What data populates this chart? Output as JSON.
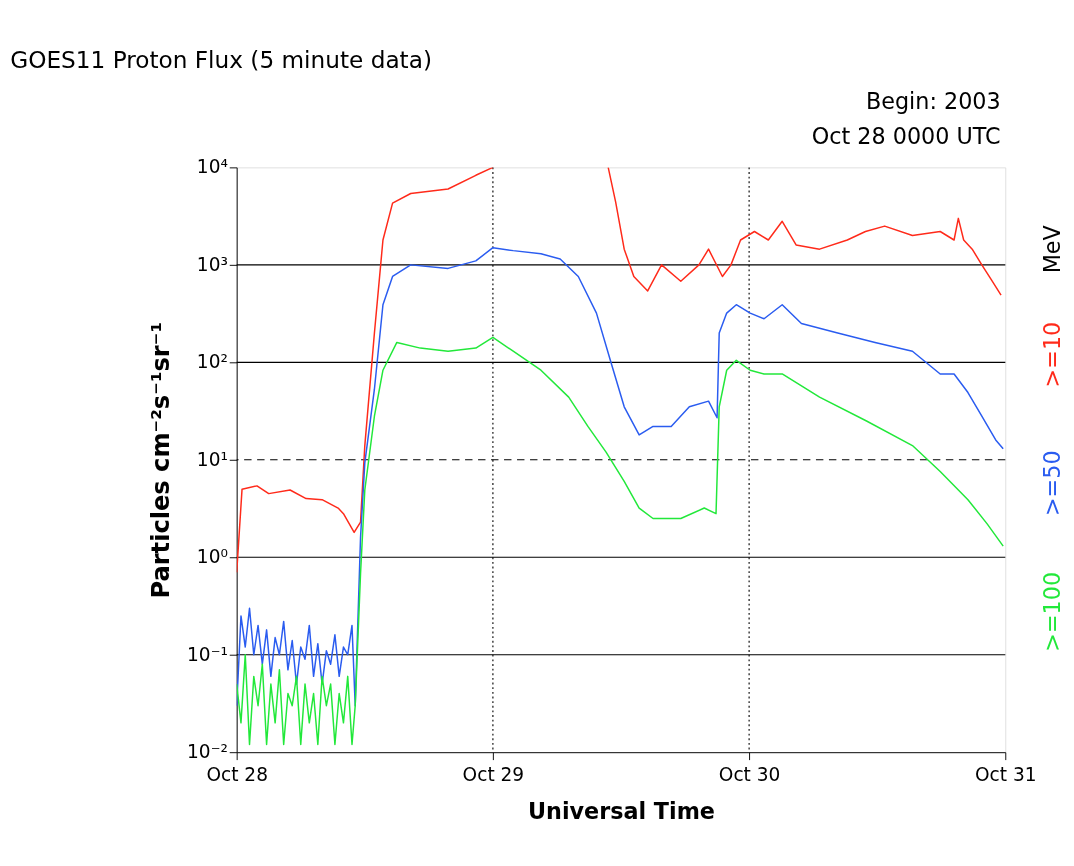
{
  "chart_data": {
    "type": "line",
    "title": "GOES11 Proton Flux (5 minute data)",
    "xlabel": "Universal Time",
    "ylabel": "Particles cm⁻²s⁻¹sr⁻¹",
    "annotations": [
      "Begin: 2003",
      "Oct 28 0000 UTC",
      "MeV"
    ],
    "xlim": [
      "2003-10-28T00:00",
      "2003-10-31T00:00"
    ],
    "xticks": [
      {
        "value": "2003-10-28",
        "label": "Oct 28"
      },
      {
        "value": "2003-10-29",
        "label": "Oct 29"
      },
      {
        "value": "2003-10-30",
        "label": "Oct 30"
      },
      {
        "value": "2003-10-31",
        "label": "Oct 31"
      }
    ],
    "log": true,
    "ylim": [
      0.01,
      10000
    ],
    "yticks": [
      {
        "value": 0.01,
        "label": "10⁻²"
      },
      {
        "value": 0.1,
        "label": "10⁻¹"
      },
      {
        "value": 1,
        "label": "10⁰"
      },
      {
        "value": 10,
        "label": "10¹"
      },
      {
        "value": 100,
        "label": "10²"
      },
      {
        "value": 1000,
        "label": "10³"
      },
      {
        "value": 10000,
        "label": "10⁴"
      }
    ],
    "grid": false,
    "legend": "right",
    "line_style": "solid",
    "marker": "none",
    "ref_lines": [
      {
        "axis": "y",
        "value": 0.1,
        "color": "#000000",
        "line_style": "solid"
      },
      {
        "axis": "y",
        "value": 1,
        "color": "#000000",
        "line_style": "solid"
      },
      {
        "axis": "y",
        "value": 10,
        "color": "#000000",
        "line_style": "dashed"
      },
      {
        "axis": "y",
        "value": 100,
        "color": "#000000",
        "line_style": "solid"
      },
      {
        "axis": "y",
        "value": 1000,
        "color": "#000000",
        "line_style": "solid"
      },
      {
        "axis": "x",
        "value": "2003-10-29",
        "color": "#000000",
        "line_style": "dotted"
      },
      {
        "axis": "x",
        "value": "2003-10-30",
        "color": "#000000",
        "line_style": "dotted"
      }
    ],
    "series": [
      {
        "name": ">=10",
        "color": "#ff2a1a",
        "x": [
          "2003-10-28T00:00",
          "2003-10-28T00:30",
          "2003-10-28T01:54",
          "2003-10-28T03:00",
          "2003-10-28T05:00",
          "2003-10-28T06:30",
          "2003-10-28T08:00",
          "2003-10-28T09:30",
          "2003-10-28T10:00",
          "2003-10-28T11:00",
          "2003-10-28T11:36",
          "2003-10-28T12:00",
          "2003-10-28T12:54",
          "2003-10-28T13:42",
          "2003-10-28T14:36",
          "2003-10-28T16:18",
          "2003-10-28T19:48",
          "2003-10-28T22:24",
          "2003-10-29T00:00",
          "2003-10-29T05:24",
          "2003-10-29T10:48",
          "2003-10-29T11:30",
          "2003-10-29T12:18",
          "2003-10-29T13:12",
          "2003-10-29T14:30",
          "2003-10-29T15:48",
          "2003-10-29T17:36",
          "2003-10-29T19:18",
          "2003-10-29T20:12",
          "2003-10-29T21:30",
          "2003-10-29T22:18",
          "2003-10-29T23:12",
          "2003-10-30T00:30",
          "2003-10-30T01:48",
          "2003-10-30T03:06",
          "2003-10-30T04:24",
          "2003-10-30T06:36",
          "2003-10-30T09:12",
          "2003-10-30T10:54",
          "2003-10-30T12:42",
          "2003-10-30T15:18",
          "2003-10-30T17:54",
          "2003-10-30T19:12",
          "2003-10-30T19:36",
          "2003-10-30T20:06",
          "2003-10-30T20:54",
          "2003-10-30T21:48",
          "2003-10-30T22:42",
          "2003-10-30T23:36"
        ],
        "values": [
          0.7,
          5,
          5.4,
          4.5,
          4.9,
          4,
          3.9,
          3.2,
          2.8,
          1.8,
          2.3,
          14,
          200,
          1800,
          4300,
          5400,
          6000,
          8300,
          10000,
          null,
          10000,
          4400,
          1450,
          760,
          540,
          1000,
          680,
          1000,
          1450,
          760,
          1000,
          1800,
          2200,
          1800,
          2800,
          1600,
          1450,
          1800,
          2200,
          2500,
          2000,
          2200,
          1800,
          3000,
          1800,
          1450,
          1000,
          700,
          490
        ]
      },
      {
        "name": ">=50",
        "color": "#2a5cf0",
        "x": [
          "2003-10-28T00:00",
          "2003-10-28T00:24",
          "2003-10-28T00:48",
          "2003-10-28T01:12",
          "2003-10-28T01:36",
          "2003-10-28T02:00",
          "2003-10-28T02:24",
          "2003-10-28T02:48",
          "2003-10-28T03:12",
          "2003-10-28T03:36",
          "2003-10-28T04:00",
          "2003-10-28T04:24",
          "2003-10-28T04:48",
          "2003-10-28T05:12",
          "2003-10-28T05:36",
          "2003-10-28T06:00",
          "2003-10-28T06:24",
          "2003-10-28T06:48",
          "2003-10-28T07:12",
          "2003-10-28T07:36",
          "2003-10-28T08:00",
          "2003-10-28T08:24",
          "2003-10-28T08:48",
          "2003-10-28T09:12",
          "2003-10-28T09:36",
          "2003-10-28T10:00",
          "2003-10-28T10:24",
          "2003-10-28T10:48",
          "2003-10-28T11:06",
          "2003-10-28T11:36",
          "2003-10-28T12:00",
          "2003-10-28T12:54",
          "2003-10-28T13:42",
          "2003-10-28T14:36",
          "2003-10-28T16:18",
          "2003-10-28T19:48",
          "2003-10-28T22:24",
          "2003-10-29T00:00",
          "2003-10-29T01:54",
          "2003-10-29T04:30",
          "2003-10-29T06:18",
          "2003-10-29T08:00",
          "2003-10-29T09:42",
          "2003-10-29T11:00",
          "2003-10-29T12:18",
          "2003-10-29T13:42",
          "2003-10-29T15:00",
          "2003-10-29T16:42",
          "2003-10-29T18:24",
          "2003-10-29T20:12",
          "2003-10-29T21:00",
          "2003-10-29T21:12",
          "2003-10-29T21:54",
          "2003-10-29T22:48",
          "2003-10-30T00:06",
          "2003-10-30T01:24",
          "2003-10-30T03:06",
          "2003-10-30T04:54",
          "2003-10-30T08:18",
          "2003-10-30T11:48",
          "2003-10-30T15:18",
          "2003-10-30T17:54",
          "2003-10-30T19:12",
          "2003-10-30T20:30",
          "2003-10-30T21:48",
          "2003-10-30T23:06",
          "2003-10-30T23:48"
        ],
        "values": [
          0.03,
          0.25,
          0.12,
          0.3,
          0.1,
          0.2,
          0.08,
          0.18,
          0.06,
          0.15,
          0.1,
          0.22,
          0.07,
          0.14,
          0.05,
          0.12,
          0.09,
          0.2,
          0.06,
          0.13,
          0.05,
          0.11,
          0.08,
          0.16,
          0.06,
          0.12,
          0.1,
          0.2,
          0.03,
          1.6,
          9.3,
          53,
          390,
          760,
          1000,
          920,
          1100,
          1500,
          1400,
          1300,
          1150,
          760,
          320,
          105,
          35,
          18,
          22,
          22,
          35,
          40,
          27,
          200,
          320,
          390,
          320,
          280,
          390,
          250,
          200,
          160,
          130,
          76,
          76,
          49,
          28,
          16,
          13
        ]
      },
      {
        "name": ">=100",
        "color": "#22e83a",
        "x": [
          "2003-10-28T00:00",
          "2003-10-28T00:24",
          "2003-10-28T00:48",
          "2003-10-28T01:12",
          "2003-10-28T01:36",
          "2003-10-28T02:00",
          "2003-10-28T02:24",
          "2003-10-28T02:48",
          "2003-10-28T03:12",
          "2003-10-28T03:36",
          "2003-10-28T04:00",
          "2003-10-28T04:24",
          "2003-10-28T04:48",
          "2003-10-28T05:12",
          "2003-10-28T05:36",
          "2003-10-28T06:00",
          "2003-10-28T06:24",
          "2003-10-28T06:48",
          "2003-10-28T07:12",
          "2003-10-28T07:36",
          "2003-10-28T08:00",
          "2003-10-28T08:24",
          "2003-10-28T08:48",
          "2003-10-28T09:12",
          "2003-10-28T09:36",
          "2003-10-28T10:00",
          "2003-10-28T10:24",
          "2003-10-28T10:48",
          "2003-10-28T11:06",
          "2003-10-28T11:36",
          "2003-10-28T12:00",
          "2003-10-28T12:54",
          "2003-10-28T13:42",
          "2003-10-28T15:00",
          "2003-10-28T17:12",
          "2003-10-28T19:48",
          "2003-10-28T22:24",
          "2003-10-29T00:00",
          "2003-10-29T01:54",
          "2003-10-29T04:30",
          "2003-10-29T07:06",
          "2003-10-29T08:54",
          "2003-10-29T10:36",
          "2003-10-29T12:18",
          "2003-10-29T13:42",
          "2003-10-29T15:00",
          "2003-10-29T17:36",
          "2003-10-29T19:48",
          "2003-10-29T20:54",
          "2003-10-29T21:12",
          "2003-10-29T21:54",
          "2003-10-29T22:48",
          "2003-10-30T00:06",
          "2003-10-30T01:24",
          "2003-10-30T03:06",
          "2003-10-30T06:36",
          "2003-10-30T11:00",
          "2003-10-30T15:18",
          "2003-10-30T17:54",
          "2003-10-30T20:30",
          "2003-10-30T22:18",
          "2003-10-30T23:48"
        ],
        "values": [
          0.05,
          0.02,
          0.1,
          0.012,
          0.06,
          0.03,
          0.08,
          0.012,
          0.05,
          0.02,
          0.07,
          0.012,
          0.04,
          0.03,
          0.06,
          0.012,
          0.05,
          0.02,
          0.04,
          0.012,
          0.06,
          0.03,
          0.05,
          0.012,
          0.04,
          0.02,
          0.06,
          0.012,
          0.03,
          0.68,
          4.9,
          28,
          83,
          160,
          140,
          130,
          140,
          180,
          130,
          83,
          44,
          22,
          12,
          6,
          3.2,
          2.5,
          2.5,
          3.2,
          2.8,
          35,
          83,
          105,
          83,
          76,
          76,
          44,
          25,
          14,
          7.6,
          3.9,
          2.2,
          1.3
        ]
      }
    ]
  }
}
